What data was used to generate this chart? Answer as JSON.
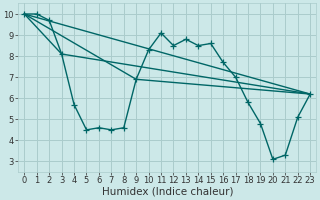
{
  "title": "",
  "xlabel": "Humidex (Indice chaleur)",
  "background_color": "#cce8e8",
  "grid_color": "#aacccc",
  "line_color": "#006666",
  "xlim": [
    -0.5,
    23.5
  ],
  "ylim": [
    2.5,
    10.5
  ],
  "yticks": [
    3,
    4,
    5,
    6,
    7,
    8,
    9,
    10
  ],
  "xticks": [
    0,
    1,
    2,
    3,
    4,
    5,
    6,
    7,
    8,
    9,
    10,
    11,
    12,
    13,
    14,
    15,
    16,
    17,
    18,
    19,
    20,
    21,
    22,
    23
  ],
  "main_x": [
    0,
    1,
    2,
    3,
    4,
    5,
    6,
    7,
    8,
    9,
    10,
    11,
    12,
    13,
    14,
    15,
    16,
    17,
    18,
    19,
    20,
    21,
    22,
    23
  ],
  "main_y": [
    10,
    10,
    9.7,
    8.1,
    5.7,
    4.5,
    4.6,
    4.5,
    4.6,
    6.9,
    8.3,
    9.1,
    8.5,
    8.8,
    8.5,
    8.6,
    7.7,
    7.0,
    5.8,
    4.8,
    3.1,
    3.3,
    5.1,
    6.2
  ],
  "line1_x": [
    0,
    23
  ],
  "line1_y": [
    10.0,
    6.2
  ],
  "line2_x": [
    0,
    3,
    23
  ],
  "line2_y": [
    10.0,
    8.1,
    6.2
  ],
  "line3_x": [
    0,
    9,
    23
  ],
  "line3_y": [
    10.0,
    6.9,
    6.2
  ],
  "linewidth": 1.0,
  "markersize": 4,
  "tick_fontsize": 6,
  "label_fontsize": 7.5
}
